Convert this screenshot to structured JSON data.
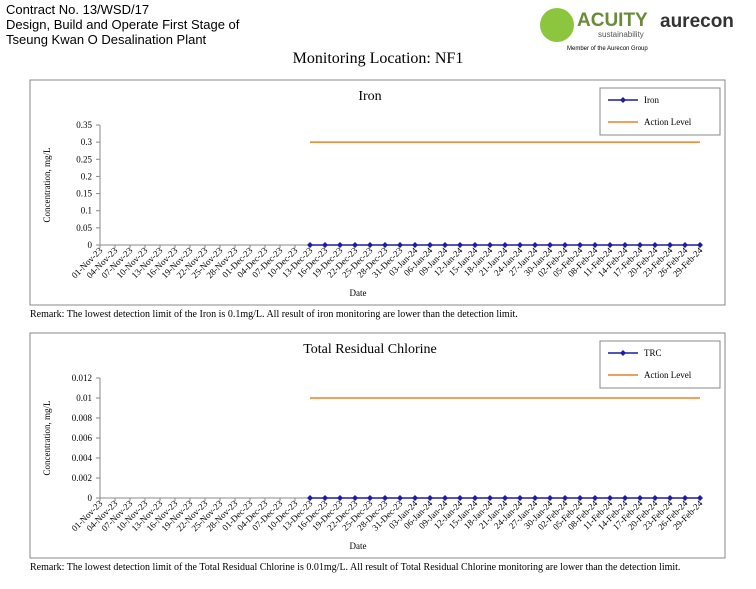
{
  "header": {
    "lines": [
      "Contract No. 13/WSD/17",
      "Design, Build and Operate First Stage of",
      "Tseung Kwan O Desalination Plant"
    ],
    "logo_acuity": "ACUITY",
    "logo_sub": "sustainability",
    "logo_member": "Member of the Aurecon Group",
    "logo_aurecon": "aurecon",
    "location": "Monitoring Location: NF1"
  },
  "remarks": [
    "Remark: The lowest detection limit of the Iron is 0.1mg/L. All result of iron monitoring are lower than the detection limit.",
    "Remark: The lowest detection limit of the Total Residual Chlorine is 0.01mg/L. All result of Total Residual Chlorine monitoring are lower than the detection limit."
  ],
  "chart_data": [
    {
      "type": "line",
      "title": "Iron",
      "ylabel": "Concentration, mg/L",
      "xlabel": "Date",
      "categories": [
        "01-Nov-23",
        "04-Nov-23",
        "07-Nov-23",
        "10-Nov-23",
        "13-Nov-23",
        "16-Nov-23",
        "19-Nov-23",
        "22-Nov-23",
        "25-Nov-23",
        "28-Nov-23",
        "01-Dec-23",
        "04-Dec-23",
        "07-Dec-23",
        "10-Dec-23",
        "13-Dec-23",
        "16-Dec-23",
        "19-Dec-23",
        "22-Dec-23",
        "25-Dec-23",
        "28-Dec-23",
        "31-Dec-23",
        "03-Jan-24",
        "06-Jan-24",
        "09-Jan-24",
        "12-Jan-24",
        "15-Jan-24",
        "18-Jan-24",
        "21-Jan-24",
        "24-Jan-24",
        "27-Jan-24",
        "30-Jan-24",
        "02-Feb-24",
        "05-Feb-24",
        "08-Feb-24",
        "11-Feb-24",
        "14-Feb-24",
        "17-Feb-24",
        "20-Feb-24",
        "23-Feb-24",
        "26-Feb-24",
        "29-Feb-24"
      ],
      "series": [
        {
          "name": "Iron",
          "color": "#1c1ca6",
          "marker": true,
          "values": [
            null,
            null,
            null,
            null,
            null,
            null,
            null,
            null,
            null,
            null,
            null,
            null,
            null,
            null,
            0,
            0,
            0,
            0,
            0,
            0,
            0,
            0,
            0,
            0,
            0,
            0,
            0,
            0,
            0,
            0,
            0,
            0,
            0,
            0,
            0,
            0,
            0,
            0,
            0,
            0,
            0
          ]
        },
        {
          "name": "Action Level",
          "color": "#e8822a",
          "marker": false,
          "values": [
            null,
            null,
            null,
            null,
            null,
            null,
            null,
            null,
            null,
            null,
            null,
            null,
            null,
            null,
            0.3,
            0.3,
            0.3,
            0.3,
            0.3,
            0.3,
            0.3,
            0.3,
            0.3,
            0.3,
            0.3,
            0.3,
            0.3,
            0.3,
            0.3,
            0.3,
            0.3,
            0.3,
            0.3,
            0.3,
            0.3,
            0.3,
            0.3,
            0.3,
            0.3,
            0.3,
            0.3
          ]
        }
      ],
      "ylim": [
        0,
        0.35
      ],
      "yticks": [
        0,
        0.05,
        0.1,
        0.15,
        0.2,
        0.25,
        0.3,
        0.35
      ],
      "legend": "upper right"
    },
    {
      "type": "line",
      "title": "Total Residual Chlorine",
      "ylabel": "Concentration, mg/L",
      "xlabel": "Date",
      "categories": [
        "01-Nov-23",
        "04-Nov-23",
        "07-Nov-23",
        "10-Nov-23",
        "13-Nov-23",
        "16-Nov-23",
        "19-Nov-23",
        "22-Nov-23",
        "25-Nov-23",
        "28-Nov-23",
        "01-Dec-23",
        "04-Dec-23",
        "07-Dec-23",
        "10-Dec-23",
        "13-Dec-23",
        "16-Dec-23",
        "19-Dec-23",
        "22-Dec-23",
        "25-Dec-23",
        "28-Dec-23",
        "31-Dec-23",
        "03-Jan-24",
        "06-Jan-24",
        "09-Jan-24",
        "12-Jan-24",
        "15-Jan-24",
        "18-Jan-24",
        "21-Jan-24",
        "24-Jan-24",
        "27-Jan-24",
        "30-Jan-24",
        "02-Feb-24",
        "05-Feb-24",
        "08-Feb-24",
        "11-Feb-24",
        "14-Feb-24",
        "17-Feb-24",
        "20-Feb-24",
        "23-Feb-24",
        "26-Feb-24",
        "29-Feb-24"
      ],
      "series": [
        {
          "name": "TRC",
          "color": "#1c1ca6",
          "marker": true,
          "values": [
            null,
            null,
            null,
            null,
            null,
            null,
            null,
            null,
            null,
            null,
            null,
            null,
            null,
            null,
            0,
            0,
            0,
            0,
            0,
            0,
            0,
            0,
            0,
            0,
            0,
            0,
            0,
            0,
            0,
            0,
            0,
            0,
            0,
            0,
            0,
            0,
            0,
            0,
            0,
            0,
            0
          ]
        },
        {
          "name": "Action Level",
          "color": "#e8822a",
          "marker": false,
          "values": [
            null,
            null,
            null,
            null,
            null,
            null,
            null,
            null,
            null,
            null,
            null,
            null,
            null,
            null,
            0.01,
            0.01,
            0.01,
            0.01,
            0.01,
            0.01,
            0.01,
            0.01,
            0.01,
            0.01,
            0.01,
            0.01,
            0.01,
            0.01,
            0.01,
            0.01,
            0.01,
            0.01,
            0.01,
            0.01,
            0.01,
            0.01,
            0.01,
            0.01,
            0.01,
            0.01,
            0.01
          ]
        }
      ],
      "ylim": [
        0,
        0.012
      ],
      "yticks": [
        0,
        0.002,
        0.004,
        0.006,
        0.008,
        0.01,
        0.012
      ],
      "legend": "upper right"
    }
  ]
}
